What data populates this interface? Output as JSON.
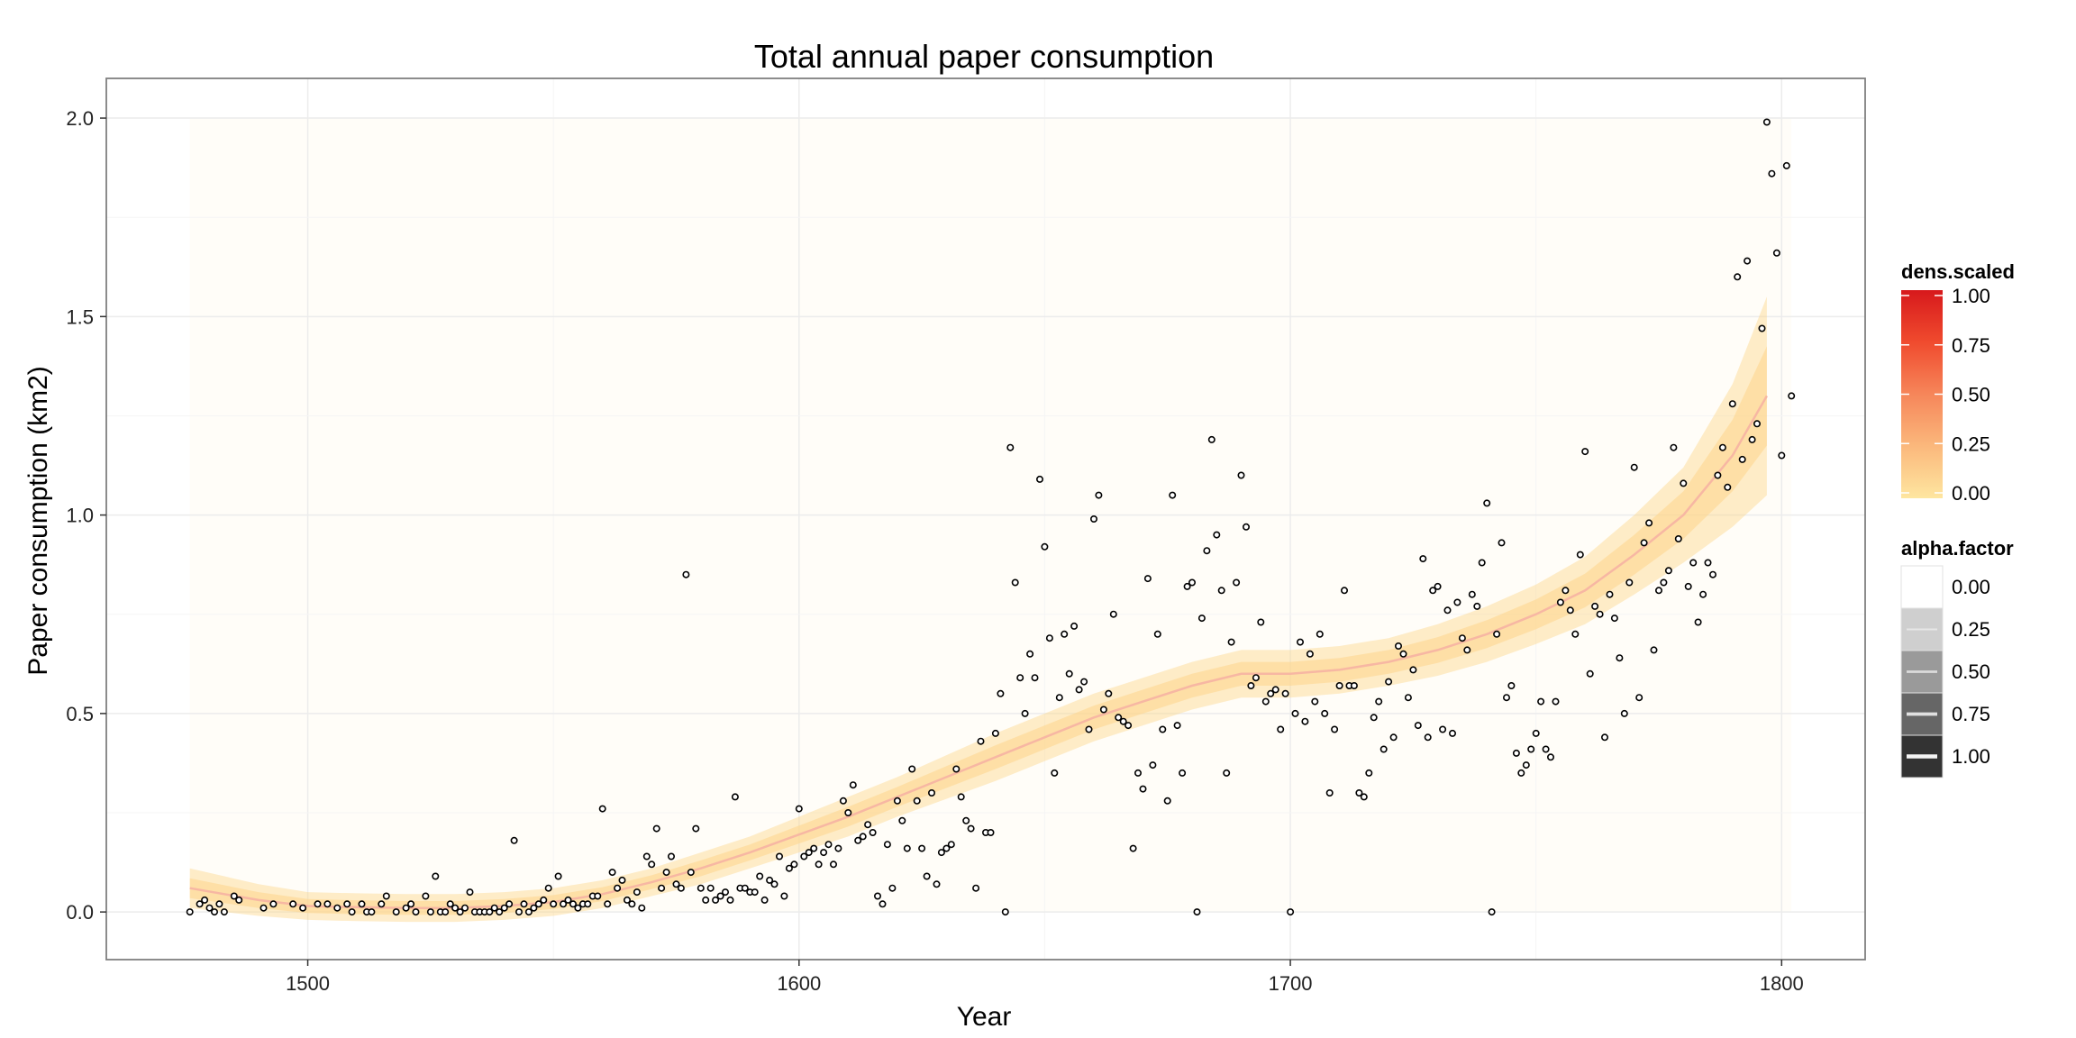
{
  "chart_data": {
    "type": "scatter",
    "title": "Total annual paper consumption",
    "xlabel": "Year",
    "ylabel": "Paper consumption (km2)",
    "xlim": [
      1459,
      1817
    ],
    "ylim": [
      -0.12,
      2.1
    ],
    "x_ticks": [
      1500,
      1600,
      1700,
      1800
    ],
    "y_ticks": [
      0.0,
      0.5,
      1.0,
      1.5,
      2.0
    ],
    "x_tick_labels": [
      "1500",
      "1600",
      "1700",
      "1800"
    ],
    "y_tick_labels": [
      "0.0",
      "0.5",
      "1.0",
      "1.5",
      "2.0"
    ],
    "grid": true,
    "legend_position": "right",
    "colors": {
      "band": "#fdd68b",
      "trend": "#f7b7a3",
      "points": "#000000",
      "grid": "#ececec",
      "panel_border": "#7f7f7f"
    },
    "trend": {
      "x": [
        1476,
        1490,
        1500,
        1510,
        1520,
        1530,
        1540,
        1550,
        1560,
        1570,
        1580,
        1590,
        1600,
        1610,
        1620,
        1630,
        1640,
        1650,
        1660,
        1670,
        1680,
        1690,
        1700,
        1710,
        1720,
        1730,
        1740,
        1750,
        1760,
        1770,
        1780,
        1790,
        1797
      ],
      "y": [
        0.06,
        0.03,
        0.015,
        0.012,
        0.01,
        0.01,
        0.015,
        0.025,
        0.045,
        0.075,
        0.11,
        0.15,
        0.195,
        0.24,
        0.29,
        0.34,
        0.39,
        0.44,
        0.49,
        0.53,
        0.57,
        0.6,
        0.6,
        0.61,
        0.63,
        0.66,
        0.7,
        0.75,
        0.81,
        0.9,
        1.0,
        1.15,
        1.3
      ],
      "band_half_width": [
        0.05,
        0.04,
        0.035,
        0.035,
        0.035,
        0.035,
        0.035,
        0.035,
        0.035,
        0.035,
        0.04,
        0.04,
        0.045,
        0.05,
        0.05,
        0.055,
        0.06,
        0.06,
        0.06,
        0.06,
        0.06,
        0.06,
        0.06,
        0.06,
        0.06,
        0.065,
        0.07,
        0.075,
        0.085,
        0.1,
        0.12,
        0.18,
        0.25
      ]
    },
    "points": [
      [
        1476,
        0.0
      ],
      [
        1478,
        0.02
      ],
      [
        1479,
        0.03
      ],
      [
        1480,
        0.01
      ],
      [
        1481,
        0.0
      ],
      [
        1482,
        0.02
      ],
      [
        1483,
        0.0
      ],
      [
        1485,
        0.04
      ],
      [
        1486,
        0.03
      ],
      [
        1491,
        0.01
      ],
      [
        1493,
        0.02
      ],
      [
        1497,
        0.02
      ],
      [
        1499,
        0.01
      ],
      [
        1502,
        0.02
      ],
      [
        1504,
        0.02
      ],
      [
        1506,
        0.01
      ],
      [
        1508,
        0.02
      ],
      [
        1509,
        0.0
      ],
      [
        1511,
        0.02
      ],
      [
        1512,
        0.0
      ],
      [
        1513,
        0.0
      ],
      [
        1515,
        0.02
      ],
      [
        1516,
        0.04
      ],
      [
        1518,
        0.0
      ],
      [
        1520,
        0.01
      ],
      [
        1521,
        0.02
      ],
      [
        1522,
        0.0
      ],
      [
        1524,
        0.04
      ],
      [
        1525,
        0.0
      ],
      [
        1526,
        0.09
      ],
      [
        1527,
        0.0
      ],
      [
        1528,
        0.0
      ],
      [
        1529,
        0.02
      ],
      [
        1530,
        0.01
      ],
      [
        1531,
        0.0
      ],
      [
        1532,
        0.01
      ],
      [
        1533,
        0.05
      ],
      [
        1534,
        0.0
      ],
      [
        1535,
        0.0
      ],
      [
        1536,
        0.0
      ],
      [
        1537,
        0.0
      ],
      [
        1538,
        0.01
      ],
      [
        1539,
        0.0
      ],
      [
        1540,
        0.01
      ],
      [
        1541,
        0.02
      ],
      [
        1542,
        0.18
      ],
      [
        1543,
        0.0
      ],
      [
        1544,
        0.02
      ],
      [
        1545,
        0.0
      ],
      [
        1546,
        0.01
      ],
      [
        1547,
        0.02
      ],
      [
        1548,
        0.03
      ],
      [
        1549,
        0.06
      ],
      [
        1550,
        0.02
      ],
      [
        1551,
        0.09
      ],
      [
        1552,
        0.02
      ],
      [
        1553,
        0.03
      ],
      [
        1554,
        0.02
      ],
      [
        1555,
        0.01
      ],
      [
        1556,
        0.02
      ],
      [
        1557,
        0.02
      ],
      [
        1558,
        0.04
      ],
      [
        1559,
        0.04
      ],
      [
        1560,
        0.26
      ],
      [
        1561,
        0.02
      ],
      [
        1562,
        0.1
      ],
      [
        1563,
        0.06
      ],
      [
        1564,
        0.08
      ],
      [
        1565,
        0.03
      ],
      [
        1566,
        0.02
      ],
      [
        1567,
        0.05
      ],
      [
        1568,
        0.01
      ],
      [
        1569,
        0.14
      ],
      [
        1570,
        0.12
      ],
      [
        1571,
        0.21
      ],
      [
        1572,
        0.06
      ],
      [
        1573,
        0.1
      ],
      [
        1574,
        0.14
      ],
      [
        1575,
        0.07
      ],
      [
        1576,
        0.06
      ],
      [
        1577,
        0.85
      ],
      [
        1578,
        0.1
      ],
      [
        1579,
        0.21
      ],
      [
        1580,
        0.06
      ],
      [
        1581,
        0.03
      ],
      [
        1582,
        0.06
      ],
      [
        1583,
        0.03
      ],
      [
        1584,
        0.04
      ],
      [
        1585,
        0.05
      ],
      [
        1586,
        0.03
      ],
      [
        1587,
        0.29
      ],
      [
        1588,
        0.06
      ],
      [
        1589,
        0.06
      ],
      [
        1590,
        0.05
      ],
      [
        1591,
        0.05
      ],
      [
        1592,
        0.09
      ],
      [
        1593,
        0.03
      ],
      [
        1594,
        0.08
      ],
      [
        1595,
        0.07
      ],
      [
        1596,
        0.14
      ],
      [
        1597,
        0.04
      ],
      [
        1598,
        0.11
      ],
      [
        1599,
        0.12
      ],
      [
        1600,
        0.26
      ],
      [
        1601,
        0.14
      ],
      [
        1602,
        0.15
      ],
      [
        1603,
        0.16
      ],
      [
        1604,
        0.12
      ],
      [
        1605,
        0.15
      ],
      [
        1606,
        0.17
      ],
      [
        1607,
        0.12
      ],
      [
        1608,
        0.16
      ],
      [
        1609,
        0.28
      ],
      [
        1610,
        0.25
      ],
      [
        1611,
        0.32
      ],
      [
        1612,
        0.18
      ],
      [
        1613,
        0.19
      ],
      [
        1614,
        0.22
      ],
      [
        1615,
        0.2
      ],
      [
        1616,
        0.04
      ],
      [
        1617,
        0.02
      ],
      [
        1618,
        0.17
      ],
      [
        1619,
        0.06
      ],
      [
        1620,
        0.28
      ],
      [
        1621,
        0.23
      ],
      [
        1622,
        0.16
      ],
      [
        1623,
        0.36
      ],
      [
        1624,
        0.28
      ],
      [
        1625,
        0.16
      ],
      [
        1626,
        0.09
      ],
      [
        1627,
        0.3
      ],
      [
        1628,
        0.07
      ],
      [
        1629,
        0.15
      ],
      [
        1630,
        0.16
      ],
      [
        1631,
        0.17
      ],
      [
        1632,
        0.36
      ],
      [
        1633,
        0.29
      ],
      [
        1634,
        0.23
      ],
      [
        1635,
        0.21
      ],
      [
        1636,
        0.06
      ],
      [
        1637,
        0.43
      ],
      [
        1638,
        0.2
      ],
      [
        1639,
        0.2
      ],
      [
        1640,
        0.45
      ],
      [
        1641,
        0.55
      ],
      [
        1642,
        0.0
      ],
      [
        1643,
        1.17
      ],
      [
        1644,
        0.83
      ],
      [
        1645,
        0.59
      ],
      [
        1646,
        0.5
      ],
      [
        1647,
        0.65
      ],
      [
        1648,
        0.59
      ],
      [
        1649,
        1.09
      ],
      [
        1650,
        0.92
      ],
      [
        1651,
        0.69
      ],
      [
        1652,
        0.35
      ],
      [
        1653,
        0.54
      ],
      [
        1654,
        0.7
      ],
      [
        1655,
        0.6
      ],
      [
        1656,
        0.72
      ],
      [
        1657,
        0.56
      ],
      [
        1658,
        0.58
      ],
      [
        1659,
        0.46
      ],
      [
        1660,
        0.99
      ],
      [
        1661,
        1.05
      ],
      [
        1662,
        0.51
      ],
      [
        1663,
        0.55
      ],
      [
        1664,
        0.75
      ],
      [
        1665,
        0.49
      ],
      [
        1666,
        0.48
      ],
      [
        1667,
        0.47
      ],
      [
        1668,
        0.16
      ],
      [
        1669,
        0.35
      ],
      [
        1670,
        0.31
      ],
      [
        1671,
        0.84
      ],
      [
        1672,
        0.37
      ],
      [
        1673,
        0.7
      ],
      [
        1674,
        0.46
      ],
      [
        1675,
        0.28
      ],
      [
        1676,
        1.05
      ],
      [
        1677,
        0.47
      ],
      [
        1678,
        0.35
      ],
      [
        1679,
        0.82
      ],
      [
        1680,
        0.83
      ],
      [
        1681,
        0.0
      ],
      [
        1682,
        0.74
      ],
      [
        1683,
        0.91
      ],
      [
        1684,
        1.19
      ],
      [
        1685,
        0.95
      ],
      [
        1686,
        0.81
      ],
      [
        1687,
        0.35
      ],
      [
        1688,
        0.68
      ],
      [
        1689,
        0.83
      ],
      [
        1690,
        1.1
      ],
      [
        1691,
        0.97
      ],
      [
        1692,
        0.57
      ],
      [
        1693,
        0.59
      ],
      [
        1694,
        0.73
      ],
      [
        1695,
        0.53
      ],
      [
        1696,
        0.55
      ],
      [
        1697,
        0.56
      ],
      [
        1698,
        0.46
      ],
      [
        1699,
        0.55
      ],
      [
        1700,
        0.0
      ],
      [
        1701,
        0.5
      ],
      [
        1702,
        0.68
      ],
      [
        1703,
        0.48
      ],
      [
        1704,
        0.65
      ],
      [
        1705,
        0.53
      ],
      [
        1706,
        0.7
      ],
      [
        1707,
        0.5
      ],
      [
        1708,
        0.3
      ],
      [
        1709,
        0.46
      ],
      [
        1710,
        0.57
      ],
      [
        1711,
        0.81
      ],
      [
        1712,
        0.57
      ],
      [
        1713,
        0.57
      ],
      [
        1714,
        0.3
      ],
      [
        1715,
        0.29
      ],
      [
        1716,
        0.35
      ],
      [
        1717,
        0.49
      ],
      [
        1718,
        0.53
      ],
      [
        1719,
        0.41
      ],
      [
        1720,
        0.58
      ],
      [
        1721,
        0.44
      ],
      [
        1722,
        0.67
      ],
      [
        1723,
        0.65
      ],
      [
        1724,
        0.54
      ],
      [
        1725,
        0.61
      ],
      [
        1726,
        0.47
      ],
      [
        1727,
        0.89
      ],
      [
        1728,
        0.44
      ],
      [
        1729,
        0.81
      ],
      [
        1730,
        0.82
      ],
      [
        1731,
        0.46
      ],
      [
        1732,
        0.76
      ],
      [
        1733,
        0.45
      ],
      [
        1734,
        0.78
      ],
      [
        1735,
        0.69
      ],
      [
        1736,
        0.66
      ],
      [
        1737,
        0.8
      ],
      [
        1738,
        0.77
      ],
      [
        1739,
        0.88
      ],
      [
        1740,
        1.03
      ],
      [
        1741,
        0.0
      ],
      [
        1742,
        0.7
      ],
      [
        1743,
        0.93
      ],
      [
        1744,
        0.54
      ],
      [
        1745,
        0.57
      ],
      [
        1746,
        0.4
      ],
      [
        1747,
        0.35
      ],
      [
        1748,
        0.37
      ],
      [
        1749,
        0.41
      ],
      [
        1750,
        0.45
      ],
      [
        1751,
        0.53
      ],
      [
        1752,
        0.41
      ],
      [
        1753,
        0.39
      ],
      [
        1754,
        0.53
      ],
      [
        1755,
        0.78
      ],
      [
        1756,
        0.81
      ],
      [
        1757,
        0.76
      ],
      [
        1758,
        0.7
      ],
      [
        1759,
        0.9
      ],
      [
        1760,
        1.16
      ],
      [
        1761,
        0.6
      ],
      [
        1762,
        0.77
      ],
      [
        1763,
        0.75
      ],
      [
        1764,
        0.44
      ],
      [
        1765,
        0.8
      ],
      [
        1766,
        0.74
      ],
      [
        1767,
        0.64
      ],
      [
        1768,
        0.5
      ],
      [
        1769,
        0.83
      ],
      [
        1770,
        1.12
      ],
      [
        1771,
        0.54
      ],
      [
        1772,
        0.93
      ],
      [
        1773,
        0.98
      ],
      [
        1774,
        0.66
      ],
      [
        1775,
        0.81
      ],
      [
        1776,
        0.83
      ],
      [
        1777,
        0.86
      ],
      [
        1778,
        1.17
      ],
      [
        1779,
        0.94
      ],
      [
        1780,
        1.08
      ],
      [
        1781,
        0.82
      ],
      [
        1782,
        0.88
      ],
      [
        1783,
        0.73
      ],
      [
        1784,
        0.8
      ],
      [
        1785,
        0.88
      ],
      [
        1786,
        0.85
      ],
      [
        1787,
        1.1
      ],
      [
        1788,
        1.17
      ],
      [
        1789,
        1.07
      ],
      [
        1790,
        1.28
      ],
      [
        1791,
        1.6
      ],
      [
        1792,
        1.14
      ],
      [
        1793,
        1.64
      ],
      [
        1794,
        1.19
      ],
      [
        1795,
        1.23
      ],
      [
        1796,
        1.47
      ],
      [
        1797,
        1.99
      ],
      [
        1798,
        1.86
      ],
      [
        1799,
        1.66
      ],
      [
        1800,
        1.15
      ],
      [
        1801,
        1.88
      ],
      [
        1802,
        1.3
      ]
    ],
    "legends": [
      {
        "title": "dens.scaled",
        "type": "colorbar",
        "labels": [
          "1.00",
          "0.75",
          "0.50",
          "0.25",
          "0.00"
        ],
        "values": [
          1.0,
          0.75,
          0.5,
          0.25,
          0.0
        ],
        "colors": [
          "#d7191c",
          "#f04b2e",
          "#f6865a",
          "#fbb87c",
          "#fee6a0"
        ]
      },
      {
        "title": "alpha.factor",
        "type": "discrete",
        "labels": [
          "0.00",
          "0.25",
          "0.50",
          "0.75",
          "1.00"
        ],
        "values": [
          0.0,
          0.25,
          0.5,
          0.75,
          1.0
        ],
        "colors": [
          "#ffffff",
          "#cfcfcf",
          "#9a9a9a",
          "#666666",
          "#333333"
        ]
      }
    ]
  }
}
